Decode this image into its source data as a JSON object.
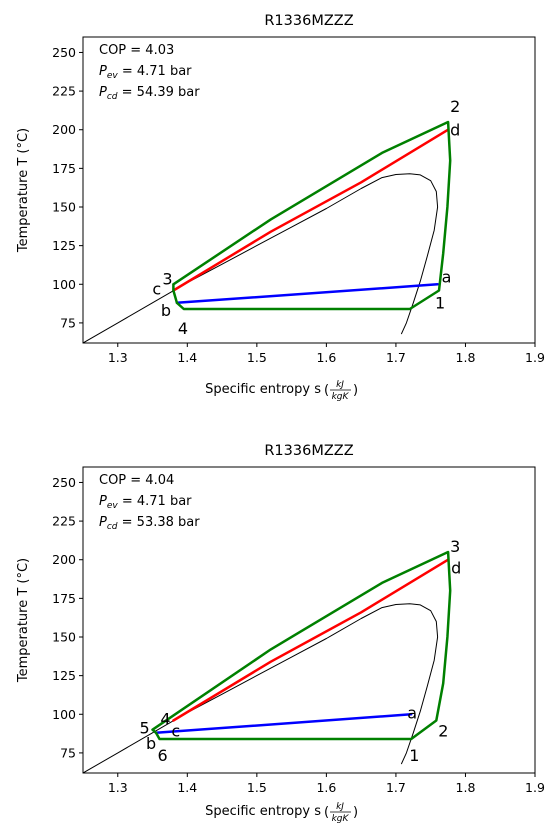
{
  "chart_data": [
    {
      "type": "line",
      "title": "R1336MZZZ",
      "xlabel": "Specific entropy s",
      "xlabel_unit": {
        "num": "kJ",
        "den": "kgK"
      },
      "ylabel": "Temperature T ($^\\circ$C)",
      "ylabel_text": "Temperature T (",
      "ylabel_unit": "°C)",
      "xlim": [
        1.25,
        1.9
      ],
      "ylim": [
        62,
        260
      ],
      "xticks": [
        1.3,
        1.4,
        1.5,
        1.6,
        1.7,
        1.8,
        1.9
      ],
      "yticks": [
        75,
        100,
        125,
        150,
        175,
        200,
        225,
        250
      ],
      "info": {
        "cop": "COP = 4.03",
        "pev": "4.71",
        "pcd": "54.39",
        "unit": "bar",
        "p_symbol": "P",
        "ev_sub": "ev",
        "cd_sub": "cd"
      },
      "series": [
        {
          "color": "#000000",
          "width": 1,
          "points": [
            [
              1.25,
              62
            ],
            [
              1.3,
              75
            ],
            [
              1.35,
              88
            ],
            [
              1.4,
              101
            ],
            [
              1.45,
              113
            ],
            [
              1.5,
              125
            ],
            [
              1.55,
              137
            ],
            [
              1.6,
              149
            ],
            [
              1.65,
              162
            ],
            [
              1.68,
              169
            ],
            [
              1.7,
              171
            ],
            [
              1.72,
              171.5
            ],
            [
              1.735,
              170.8
            ],
            [
              1.75,
              167
            ],
            [
              1.758,
              160
            ],
            [
              1.76,
              150
            ],
            [
              1.755,
              135
            ],
            [
              1.745,
              118
            ],
            [
              1.735,
              102
            ],
            [
              1.725,
              88
            ],
            [
              1.715,
              75
            ],
            [
              1.708,
              68
            ]
          ]
        },
        {
          "color": "#ff0000",
          "width": 2.5,
          "points": [
            [
              1.38,
              96
            ],
            [
              1.52,
              134
            ],
            [
              1.65,
              166
            ],
            [
              1.775,
              200
            ]
          ]
        },
        {
          "color": "#0000ff",
          "width": 2.5,
          "points": [
            [
              1.385,
              88
            ],
            [
              1.76,
              100
            ]
          ]
        },
        {
          "color": "#008000",
          "width": 2.5,
          "points": [
            [
              1.38,
              100
            ],
            [
              1.52,
              142
            ],
            [
              1.68,
              185
            ],
            [
              1.775,
              205
            ],
            [
              1.778,
              180
            ],
            [
              1.774,
              150
            ],
            [
              1.768,
              120
            ],
            [
              1.762,
              96
            ],
            [
              1.72,
              84
            ],
            [
              1.395,
              84
            ],
            [
              1.385,
              88
            ],
            [
              1.38,
              96
            ],
            [
              1.38,
              100
            ]
          ]
        }
      ],
      "labels": [
        {
          "text": "2",
          "x": 1.775,
          "y": 205,
          "dx": 2,
          "dy": -16
        },
        {
          "text": "d",
          "x": 1.775,
          "y": 200,
          "dx": 2,
          "dy": 0
        },
        {
          "text": "3",
          "x": 1.38,
          "y": 100,
          "dx": -11,
          "dy": -6
        },
        {
          "text": "c",
          "x": 1.38,
          "y": 96,
          "dx": -21,
          "dy": -2
        },
        {
          "text": "b",
          "x": 1.385,
          "y": 88,
          "dx": -16,
          "dy": 7
        },
        {
          "text": "4",
          "x": 1.395,
          "y": 84,
          "dx": -6,
          "dy": 19
        },
        {
          "text": "a",
          "x": 1.76,
          "y": 100,
          "dx": 4,
          "dy": -8
        },
        {
          "text": "1",
          "x": 1.762,
          "y": 96,
          "dx": -4,
          "dy": 12
        }
      ]
    },
    {
      "type": "line",
      "title": "R1336MZZZ",
      "xlabel": "Specific entropy s",
      "xlabel_unit": {
        "num": "kJ",
        "den": "kgK"
      },
      "ylabel_text": "Temperature T (",
      "ylabel_unit": "°C)",
      "xlim": [
        1.25,
        1.9
      ],
      "ylim": [
        62,
        260
      ],
      "xticks": [
        1.3,
        1.4,
        1.5,
        1.6,
        1.7,
        1.8,
        1.9
      ],
      "yticks": [
        75,
        100,
        125,
        150,
        175,
        200,
        225,
        250
      ],
      "info": {
        "cop": "COP = 4.04",
        "pev": "4.71",
        "pcd": "53.38",
        "unit": "bar",
        "p_symbol": "P",
        "ev_sub": "ev",
        "cd_sub": "cd"
      },
      "series": [
        {
          "color": "#000000",
          "width": 1,
          "points": [
            [
              1.25,
              62
            ],
            [
              1.3,
              75
            ],
            [
              1.35,
              88
            ],
            [
              1.4,
              101
            ],
            [
              1.45,
              113
            ],
            [
              1.5,
              125
            ],
            [
              1.55,
              137
            ],
            [
              1.6,
              149
            ],
            [
              1.65,
              162
            ],
            [
              1.68,
              169
            ],
            [
              1.7,
              171
            ],
            [
              1.72,
              171.5
            ],
            [
              1.735,
              170.8
            ],
            [
              1.75,
              167
            ],
            [
              1.758,
              160
            ],
            [
              1.76,
              150
            ],
            [
              1.755,
              135
            ],
            [
              1.745,
              118
            ],
            [
              1.735,
              102
            ],
            [
              1.725,
              88
            ],
            [
              1.715,
              75
            ],
            [
              1.708,
              68
            ]
          ]
        },
        {
          "color": "#ff0000",
          "width": 2.5,
          "points": [
            [
              1.38,
              96
            ],
            [
              1.52,
              134
            ],
            [
              1.65,
              166
            ],
            [
              1.775,
              200
            ]
          ]
        },
        {
          "color": "#0000ff",
          "width": 2.5,
          "points": [
            [
              1.355,
              88
            ],
            [
              1.722,
              100
            ]
          ]
        },
        {
          "color": "#008000",
          "width": 2.5,
          "points": [
            [
              1.35,
              90
            ],
            [
              1.52,
              142
            ],
            [
              1.68,
              185
            ],
            [
              1.775,
              205
            ],
            [
              1.778,
              180
            ],
            [
              1.774,
              150
            ],
            [
              1.768,
              120
            ],
            [
              1.758,
              96
            ],
            [
              1.722,
              84
            ],
            [
              1.36,
              84
            ],
            [
              1.355,
              88
            ],
            [
              1.35,
              90
            ]
          ]
        }
      ],
      "labels": [
        {
          "text": "3",
          "x": 1.775,
          "y": 205,
          "dx": 2,
          "dy": -6
        },
        {
          "text": "d",
          "x": 1.775,
          "y": 200,
          "dx": 3,
          "dy": 8
        },
        {
          "text": "4",
          "x": 1.38,
          "y": 96,
          "dx": -13,
          "dy": -2
        },
        {
          "text": "c",
          "x": 1.38,
          "y": 96,
          "dx": -2,
          "dy": 10
        },
        {
          "text": "5",
          "x": 1.35,
          "y": 90,
          "dx": -13,
          "dy": -2
        },
        {
          "text": "b",
          "x": 1.355,
          "y": 88,
          "dx": -10,
          "dy": 10
        },
        {
          "text": "6",
          "x": 1.36,
          "y": 84,
          "dx": -2,
          "dy": 16
        },
        {
          "text": "a",
          "x": 1.722,
          "y": 100,
          "dx": -4,
          "dy": -2
        },
        {
          "text": "2",
          "x": 1.758,
          "y": 96,
          "dx": 2,
          "dy": 10
        },
        {
          "text": "1",
          "x": 1.722,
          "y": 84,
          "dx": -2,
          "dy": 16
        }
      ]
    }
  ]
}
